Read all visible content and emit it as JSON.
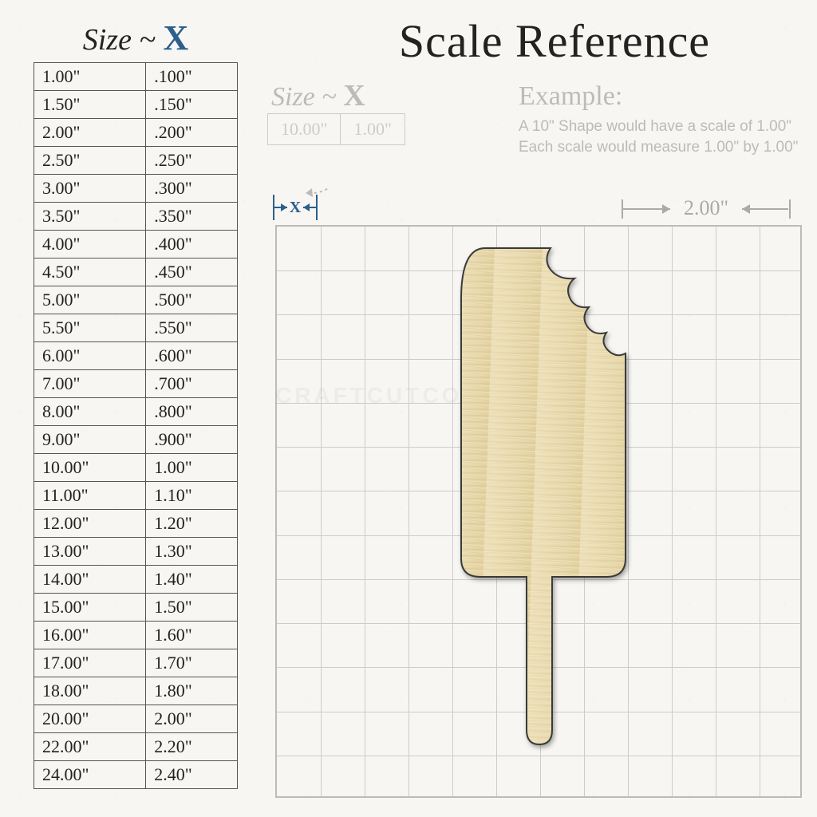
{
  "title": "Scale Reference",
  "size_header": {
    "label": "Size",
    "symbol": "X"
  },
  "mini": {
    "label": "Size",
    "symbol": "X",
    "example_size": "10.00\"",
    "example_scale": "1.00\""
  },
  "example": {
    "heading": "Example:",
    "line1": "A 10\" Shape would have a scale of 1.00\"",
    "line2": "Each scale would measure 1.00\" by 1.00\""
  },
  "grid": {
    "cell_label": "2.00\"",
    "cols": 12,
    "rows": 13,
    "line_color": "#cccccc",
    "border_color": "#bbbbbb"
  },
  "x_marker": {
    "label": "X",
    "color": "#2c5f8c"
  },
  "colors": {
    "background": "#f7f6f2",
    "text": "#222222",
    "accent_blue": "#2c5f8c",
    "faded": "#bbbbbb",
    "table_border": "#555555",
    "wood_light": "#f1e6c4",
    "wood_dark": "#ddca95"
  },
  "table": {
    "columns": [
      "Size",
      "X"
    ],
    "rows": [
      [
        "1.00\"",
        ".100\""
      ],
      [
        "1.50\"",
        ".150\""
      ],
      [
        "2.00\"",
        ".200\""
      ],
      [
        "2.50\"",
        ".250\""
      ],
      [
        "3.00\"",
        ".300\""
      ],
      [
        "3.50\"",
        ".350\""
      ],
      [
        "4.00\"",
        ".400\""
      ],
      [
        "4.50\"",
        ".450\""
      ],
      [
        "5.00\"",
        ".500\""
      ],
      [
        "5.50\"",
        ".550\""
      ],
      [
        "6.00\"",
        ".600\""
      ],
      [
        "7.00\"",
        ".700\""
      ],
      [
        "8.00\"",
        ".800\""
      ],
      [
        "9.00\"",
        ".900\""
      ],
      [
        "10.00\"",
        "1.00\""
      ],
      [
        "11.00\"",
        "1.10\""
      ],
      [
        "12.00\"",
        "1.20\""
      ],
      [
        "13.00\"",
        "1.30\""
      ],
      [
        "14.00\"",
        "1.40\""
      ],
      [
        "15.00\"",
        "1.50\""
      ],
      [
        "16.00\"",
        "1.60\""
      ],
      [
        "17.00\"",
        "1.70\""
      ],
      [
        "18.00\"",
        "1.80\""
      ],
      [
        "20.00\"",
        "2.00\""
      ],
      [
        "22.00\"",
        "2.20\""
      ],
      [
        "24.00\"",
        "2.40\""
      ]
    ]
  },
  "shape": {
    "name": "popsicle-bite",
    "width_cells": 4,
    "height_cells": 11
  },
  "watermark": "CRAFTCUTCONCEPTS"
}
